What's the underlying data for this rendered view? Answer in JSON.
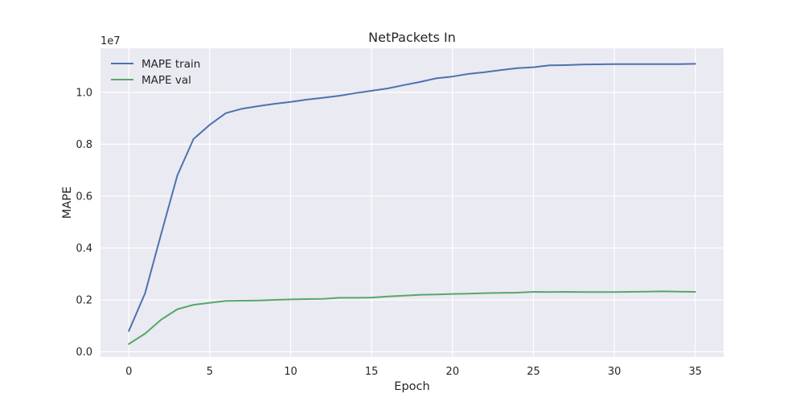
{
  "chart_data": {
    "type": "line",
    "title": "NetPackets In",
    "xlabel": "Epoch",
    "ylabel": "MAPE",
    "y_offset_label": "1e7",
    "xlim": [
      -1.75,
      36.75
    ],
    "ylim": [
      -0.02,
      1.17
    ],
    "x_ticks": [
      0,
      5,
      10,
      15,
      20,
      25,
      30,
      35
    ],
    "x_tick_labels": [
      "0",
      "5",
      "10",
      "15",
      "20",
      "25",
      "30",
      "35"
    ],
    "y_ticks": [
      0.0,
      0.2,
      0.4,
      0.6,
      0.8,
      1.0
    ],
    "y_tick_labels": [
      "0.0",
      "0.2",
      "0.4",
      "0.6",
      "0.8",
      "1.0"
    ],
    "grid": true,
    "legend_position": "top-left",
    "x": [
      0,
      1,
      2,
      3,
      4,
      5,
      6,
      7,
      8,
      9,
      10,
      11,
      12,
      13,
      14,
      15,
      16,
      17,
      18,
      19,
      20,
      21,
      22,
      23,
      24,
      25,
      26,
      27,
      28,
      29,
      30,
      31,
      32,
      33,
      34,
      35
    ],
    "series": [
      {
        "name": "MAPE train",
        "color": "#4c72b0",
        "values": [
          0.08,
          0.225,
          0.455,
          0.68,
          0.82,
          0.875,
          0.92,
          0.937,
          0.947,
          0.956,
          0.963,
          0.972,
          0.979,
          0.987,
          0.997,
          1.006,
          1.015,
          1.028,
          1.04,
          1.054,
          1.061,
          1.071,
          1.078,
          1.086,
          1.093,
          1.097,
          1.104,
          1.105,
          1.107,
          1.108,
          1.109,
          1.109,
          1.109,
          1.109,
          1.109,
          1.11
        ]
      },
      {
        "name": "MAPE val",
        "color": "#55a868",
        "values": [
          0.03,
          0.07,
          0.124,
          0.164,
          0.181,
          0.189,
          0.196,
          0.197,
          0.198,
          0.2,
          0.202,
          0.203,
          0.204,
          0.208,
          0.208,
          0.209,
          0.213,
          0.216,
          0.22,
          0.221,
          0.223,
          0.224,
          0.226,
          0.227,
          0.228,
          0.231,
          0.23,
          0.231,
          0.23,
          0.23,
          0.23,
          0.231,
          0.232,
          0.233,
          0.232,
          0.231
        ]
      }
    ]
  }
}
